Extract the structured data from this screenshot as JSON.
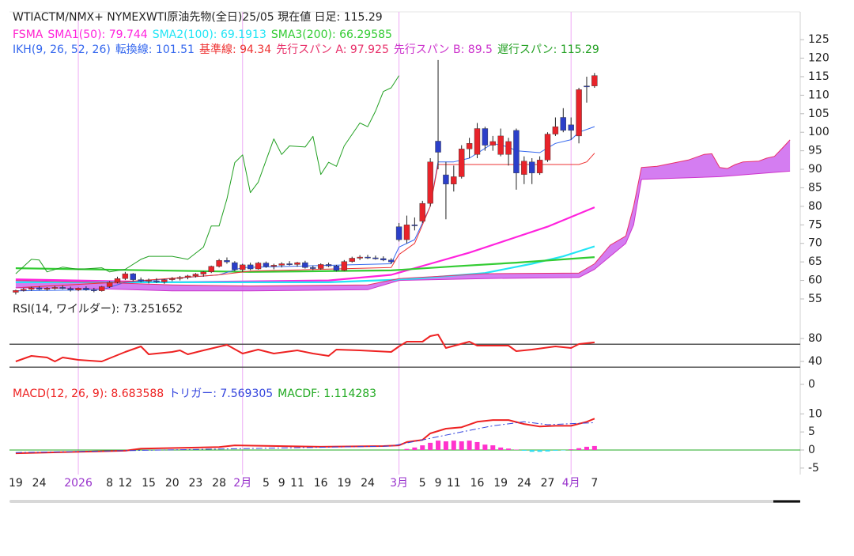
{
  "chart_data": [
    {
      "type": "candlestick",
      "title": "WTIACTM/NMX+ NYMEXWTI原油先物(全日)25/05 現在値 日足: 115.29",
      "xlim": [
        -0.8,
        100.3
      ],
      "ylim": [
        53.5,
        132.5
      ],
      "yticks": [
        55,
        60,
        65,
        70,
        75,
        80,
        85,
        90,
        95,
        100,
        105,
        110,
        115,
        120,
        125
      ],
      "candles": {
        "up_color": "#e8232a",
        "down_color": "#2b3fc9",
        "open": [
          56.8,
          57.3,
          57.6,
          58.0,
          57.6,
          57.9,
          58.1,
          57.8,
          57.4,
          57.9,
          57.5,
          57.2,
          58.3,
          59.5,
          60.5,
          61.8,
          60.2,
          59.8,
          59.9,
          59.6,
          60.2,
          60.5,
          60.8,
          61.2,
          61.7,
          62.3,
          63.8,
          65.4,
          64.8,
          62.9,
          64.2,
          63.1,
          64.7,
          63.8,
          64.1,
          64.5,
          64.3,
          64.8,
          63.5,
          63.2,
          64.3,
          63.9,
          62.7,
          65.1,
          66.0,
          66.3,
          66.1,
          65.9,
          65.5,
          74.5,
          71.0,
          75.0,
          76.0,
          80.8,
          97.6,
          88.5,
          86.0,
          88.0,
          95.5,
          94.0,
          101.0,
          96.5,
          94.0,
          94.0,
          100.5,
          88.6,
          92.0,
          89.0,
          92.5,
          99.5,
          104.0,
          102.0,
          99.0,
          112.5,
          112.5
        ],
        "high": [
          57.5,
          58.0,
          58.3,
          58.4,
          58.2,
          58.5,
          58.6,
          58.3,
          58.1,
          58.4,
          58.0,
          58.5,
          59.8,
          61.0,
          62.3,
          62.0,
          60.8,
          60.5,
          60.6,
          60.4,
          60.9,
          61.2,
          61.5,
          62.0,
          62.5,
          64.0,
          65.8,
          66.2,
          65.2,
          64.5,
          64.8,
          65.0,
          65.1,
          64.5,
          64.9,
          65.2,
          65.0,
          65.3,
          64.0,
          64.6,
          64.8,
          64.2,
          65.5,
          66.4,
          66.8,
          66.9,
          66.7,
          66.5,
          66.0,
          75.5,
          77.5,
          77.0,
          81.5,
          93.0,
          119.5,
          92.0,
          91.0,
          96.5,
          98.5,
          102.5,
          101.5,
          99.0,
          101.0,
          98.5,
          101.0,
          93.5,
          93.0,
          93.5,
          100.0,
          104.0,
          106.5,
          104.0,
          112.0,
          115.0,
          116.0
        ],
        "low": [
          56.2,
          57.0,
          57.2,
          57.4,
          57.2,
          57.5,
          57.6,
          57.0,
          57.1,
          57.2,
          56.8,
          57.0,
          58.0,
          59.2,
          60.1,
          59.8,
          59.5,
          59.2,
          59.3,
          59.1,
          59.8,
          60.0,
          60.3,
          60.8,
          61.0,
          62.0,
          63.5,
          64.5,
          62.5,
          62.3,
          62.8,
          62.9,
          63.4,
          63.0,
          63.5,
          64.0,
          63.7,
          63.2,
          62.8,
          62.9,
          63.6,
          62.4,
          62.5,
          64.8,
          65.5,
          65.8,
          65.6,
          65.2,
          64.5,
          70.5,
          70.0,
          73.5,
          75.5,
          80.0,
          90.0,
          76.5,
          84.0,
          87.5,
          93.0,
          93.0,
          95.0,
          95.0,
          93.5,
          91.0,
          84.5,
          86.0,
          86.0,
          88.5,
          92.0,
          99.0,
          100.0,
          98.0,
          97.0,
          108.0,
          112.0
        ],
        "close": [
          57.3,
          57.6,
          58.0,
          57.6,
          57.9,
          58.1,
          57.8,
          57.4,
          57.9,
          57.5,
          57.2,
          58.3,
          59.5,
          60.5,
          61.8,
          60.2,
          59.8,
          60.1,
          59.6,
          60.2,
          60.5,
          60.8,
          61.2,
          61.7,
          62.3,
          63.8,
          65.4,
          65.0,
          62.9,
          64.2,
          63.1,
          64.7,
          63.8,
          64.1,
          64.5,
          64.3,
          64.8,
          63.5,
          63.2,
          64.3,
          63.9,
          62.7,
          65.1,
          66.0,
          66.3,
          66.1,
          65.9,
          65.5,
          65.0,
          71.0,
          75.0,
          74.8,
          80.8,
          92.0,
          94.6,
          86.0,
          88.0,
          95.5,
          97.0,
          101.0,
          96.5,
          97.5,
          99.0,
          97.5,
          89.0,
          92.2,
          89.0,
          92.5,
          99.5,
          101.5,
          100.5,
          100.5,
          111.5,
          112.3,
          115.29
        ]
      },
      "sma": {
        "prefix": "FSMA",
        "prefix_color": "#ff22cc",
        "series": [
          {
            "name": "SMA1(50): 79.744",
            "color": "#ff22dd",
            "width": 2.2,
            "x": [
              0,
              20,
              40,
              48,
              53,
              58,
              63,
              68,
              74
            ],
            "values": [
              60.3,
              59.5,
              60,
              61.5,
              64.5,
              67.5,
              71,
              74.5,
              79.744
            ]
          },
          {
            "name": "SMA2(100): 69.1913",
            "color": "#22e5f5",
            "width": 2.2,
            "x": [
              0,
              40,
              50,
              60,
              66,
              70,
              74
            ],
            "values": [
              59.5,
              59.5,
              60.3,
              62,
              64.5,
              66.5,
              69.1913
            ]
          },
          {
            "name": "SMA3(200): 66.29585",
            "color": "#33cc33",
            "width": 2.2,
            "x": [
              0,
              30,
              48,
              56,
              64,
              74
            ],
            "values": [
              63.3,
              62.3,
              62.7,
              63.8,
              64.8,
              66.29585
            ]
          }
        ]
      },
      "ichimoku": {
        "prefix": "IKH(9, 26, 52, 26)",
        "prefix_color": "#3366ee",
        "cloud_color": "#cc66ee",
        "series": [
          {
            "name": "転換線: 101.51",
            "color": "#3366ee",
            "width": 1,
            "x": [
              0,
              11,
              14,
              26,
              29,
              48,
              49,
              51,
              53,
              54,
              56,
              58,
              61,
              63,
              64,
              67,
              69,
              71,
              72,
              74
            ],
            "values": [
              57.2,
              57.5,
              59.5,
              61.5,
              63.5,
              64.5,
              69,
              71,
              80,
              92,
              92,
              93,
              97,
              96,
              95,
              94.5,
              97,
              98,
              100,
              101.51
            ]
          },
          {
            "name": "基準線: 94.34",
            "color": "#ee3333",
            "width": 1,
            "x": [
              0,
              13,
              26,
              30,
              48,
              49,
              51,
              53,
              54,
              72,
              73,
              74
            ],
            "values": [
              58,
              59.5,
              61.5,
              62.5,
              63.5,
              67,
              70,
              80,
              91.3,
              91.3,
              92,
              94.34
            ]
          },
          {
            "name": "先行スパン A: 97.925",
            "color": "#e8306a",
            "width": 1,
            "cloud": true,
            "x": [
              0,
              10,
              20,
              30,
              45,
              49,
              60,
              72,
              74,
              76,
              78,
              79,
              80,
              82,
              86,
              88,
              89,
              90,
              91,
              92,
              93,
              95,
              96,
              97,
              98,
              99
            ],
            "values": [
              60,
              59.5,
              58.8,
              58.5,
              58.8,
              60.5,
              61.8,
              62,
              64.5,
              69.5,
              72,
              80,
              90.5,
              90.8,
              92.5,
              94,
              94.2,
              90.5,
              90.2,
              91.3,
              92,
              92.2,
              93,
              93.5,
              95.7,
              97.925
            ]
          },
          {
            "name": "先行スパン B: 89.5",
            "color": "#cc33cc",
            "width": 1,
            "cloud": true,
            "x": [
              0,
              10,
              20,
              30,
              45,
              49,
              60,
              72,
              74,
              76,
              78,
              79,
              80,
              90,
              99
            ],
            "values": [
              58,
              57.8,
              57.2,
              57.2,
              57.5,
              60,
              60.5,
              60.8,
              63,
              66.5,
              70,
              75,
              87.3,
              88,
              89.5
            ]
          },
          {
            "name": "遅行スパン: 115.29",
            "color": "#22a022",
            "width": 1,
            "x": [
              0,
              2,
              3,
              4,
              6,
              8,
              11,
              12,
              14,
              16,
              17,
              20,
              22,
              24,
              25,
              26,
              27,
              28,
              29,
              30,
              31,
              33,
              34,
              35,
              37,
              38,
              39,
              40,
              41,
              42,
              44,
              45,
              46,
              47,
              48,
              49
            ],
            "values": [
              61.8,
              65.7,
              65.5,
              62.3,
              63.6,
              63,
              63.4,
              62.3,
              63,
              65.7,
              66.5,
              66.5,
              65.7,
              69,
              74.7,
              74.7,
              82,
              91.8,
              93.9,
              83.7,
              86.5,
              98.2,
              94,
              96.3,
              96,
              98.9,
              88.6,
              91.9,
              90.8,
              96.3,
              102.5,
              101.5,
              105.7,
              111,
              112,
              115.29
            ]
          }
        ]
      }
    },
    {
      "type": "line",
      "title": "RSI(14, ワイルダー): 73.251652",
      "xlim": [
        -0.8,
        100.3
      ],
      "ylim": [
        0,
        120
      ],
      "yticks": [
        0,
        40,
        80
      ],
      "reference_lines": [
        30,
        70
      ],
      "reference_color": "#555555",
      "series": [
        {
          "color": "#ee2222",
          "width": 2,
          "x": [
            0,
            2,
            4,
            5,
            6,
            8,
            11,
            14,
            16,
            17,
            20,
            21,
            22,
            24,
            27,
            29,
            31,
            33,
            36,
            38,
            40,
            41,
            44,
            48,
            49,
            50,
            52,
            53,
            54,
            55,
            58,
            59,
            63,
            64,
            66,
            69,
            71,
            72,
            74
          ],
          "values": [
            40,
            49.7,
            46.9,
            40,
            46.9,
            42.8,
            40,
            56.6,
            66.2,
            52.4,
            56.6,
            59.3,
            52.4,
            59.3,
            69,
            53.8,
            60.7,
            53.8,
            59.3,
            53.8,
            49.7,
            60.7,
            59.3,
            56.6,
            66.2,
            74.5,
            74.5,
            84.1,
            86.9,
            63.4,
            74.5,
            67.6,
            67.6,
            57.9,
            60.7,
            66.2,
            63.4,
            70.3,
            73.251652
          ]
        }
      ]
    },
    {
      "type": "line",
      "xlim": [
        -0.8,
        100.3
      ],
      "ylim": [
        -7,
        14
      ],
      "yticks": [
        -5,
        0,
        5,
        10
      ],
      "zero_color": "#22aa22",
      "categories": [
        "19",
        null,
        null,
        "24",
        null,
        null,
        null,
        null,
        "2026",
        null,
        null,
        null,
        "8",
        null,
        "12",
        null,
        null,
        "15",
        null,
        null,
        "20",
        null,
        null,
        "23",
        null,
        null,
        "28",
        null,
        null,
        "2月",
        null,
        null,
        "5",
        null,
        "9",
        null,
        "11",
        null,
        null,
        "16",
        null,
        null,
        "19",
        null,
        null,
        "24",
        null,
        null,
        null,
        "3月",
        null,
        null,
        "5",
        null,
        "9",
        null,
        "11",
        null,
        null,
        "16",
        null,
        null,
        "19",
        null,
        null,
        "24",
        null,
        null,
        "27",
        null,
        null,
        "4月",
        null,
        null,
        "7"
      ],
      "series": [
        {
          "name": "MACD(12, 26, 9): 8.683588",
          "color": "#ee2222",
          "width": 2,
          "x": [
            0,
            8,
            14,
            16,
            26,
            28,
            39,
            47,
            49,
            50,
            52,
            53,
            55,
            57,
            59,
            61,
            63,
            65,
            67,
            69,
            71,
            73,
            74
          ],
          "values": [
            -0.9,
            -0.5,
            -0.2,
            0.4,
            0.8,
            1.3,
            0.9,
            1.1,
            1.3,
            2.2,
            2.8,
            4.6,
            5.9,
            6.3,
            7.8,
            8.3,
            8.3,
            7.2,
            6.5,
            6.7,
            6.7,
            7.8,
            8.683588
          ]
        },
        {
          "name": "トリガー: 7.569305",
          "color": "#3344dd",
          "width": 1,
          "dash": true,
          "x": [
            0,
            48,
            52,
            57,
            61,
            65,
            68,
            74
          ],
          "values": [
            -0.7,
            1.1,
            2.8,
            5.0,
            6.7,
            7.8,
            7.0,
            7.569305
          ]
        },
        {
          "name": "MACDF: 1.114283",
          "color": "#22aa22",
          "bar": true,
          "pos_color": "#ff33cc",
          "neg_color": "#33ddee",
          "x": [
            50,
            51,
            52,
            53,
            54,
            55,
            56,
            57,
            58,
            59,
            60,
            61,
            62,
            63,
            64,
            65,
            66,
            67,
            68,
            69,
            70,
            71,
            72,
            73,
            74
          ],
          "values": [
            0.3,
            0.7,
            1.3,
            2.0,
            2.6,
            2.4,
            2.6,
            2.4,
            2.6,
            2.2,
            1.5,
            1.3,
            0.7,
            0.4,
            0.1,
            -0.2,
            -0.5,
            -0.5,
            -0.4,
            -0.2,
            -0.1,
            0.2,
            0.5,
            0.9,
            1.114283
          ]
        }
      ]
    }
  ]
}
